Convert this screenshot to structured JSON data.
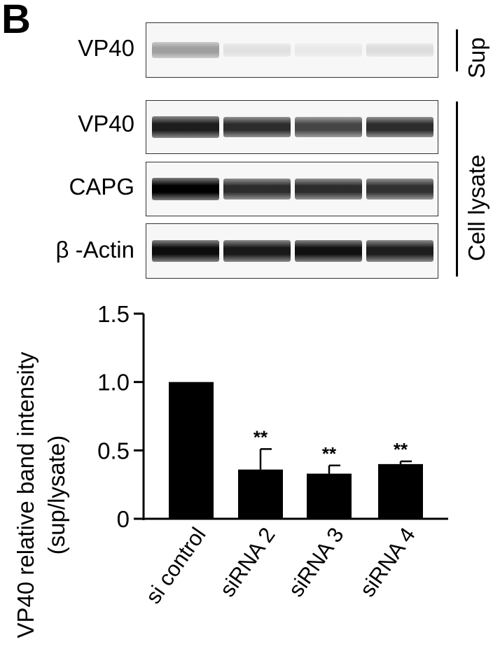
{
  "panel_label": "B",
  "blot": {
    "rows": [
      {
        "label": "VP40",
        "group": "sup",
        "intensities": [
          0.35,
          0.08,
          0.05,
          0.1
        ]
      },
      {
        "label": "VP40",
        "group": "lysate",
        "intensities": [
          0.88,
          0.82,
          0.72,
          0.82
        ]
      },
      {
        "label": "CAPG",
        "group": "lysate",
        "intensities": [
          1.0,
          0.82,
          0.82,
          0.8
        ]
      },
      {
        "label": "β -Actin",
        "group": "lysate",
        "intensities": [
          0.95,
          0.9,
          0.93,
          0.88
        ]
      }
    ],
    "groups": {
      "sup": "Sup",
      "lysate": "Cell lysate"
    }
  },
  "chart_data": {
    "type": "bar",
    "categories": [
      "si control",
      "siRNA 2",
      "siRNA 3",
      "siRNA 4"
    ],
    "values": [
      1.0,
      0.36,
      0.33,
      0.4
    ],
    "errors": [
      0,
      0.15,
      0.06,
      0.02
    ],
    "annotations": [
      "",
      "**",
      "**",
      "**"
    ],
    "ylabel": [
      "VP40 relative band intensity",
      "(sup/lysate)"
    ],
    "ylim": [
      0,
      1.5
    ],
    "yticks": [
      "0",
      "0.5",
      "1.0",
      "1.5"
    ],
    "bar_color": "#000000"
  }
}
